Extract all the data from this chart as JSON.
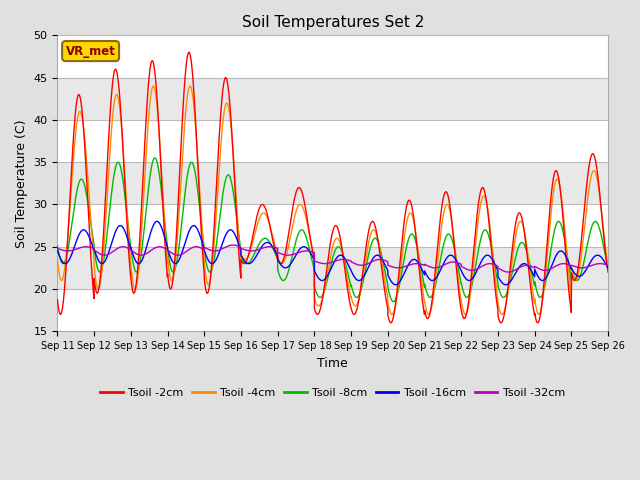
{
  "title": "Soil Temperatures Set 2",
  "xlabel": "Time",
  "ylabel": "Soil Temperature (C)",
  "ylim": [
    15,
    50
  ],
  "yticks": [
    15,
    20,
    25,
    30,
    35,
    40,
    45,
    50
  ],
  "x_tick_labels": [
    "Sep 11",
    "Sep 12",
    "Sep 13",
    "Sep 14",
    "Sep 15",
    "Sep 16",
    "Sep 17",
    "Sep 18",
    "Sep 19",
    "Sep 20",
    "Sep 21",
    "Sep 22",
    "Sep 23",
    "Sep 24",
    "Sep 25",
    "Sep 26"
  ],
  "annotation_text": "VR_met",
  "annotation_color": "#8B0000",
  "annotation_bg": "#FFD700",
  "annotation_border": "#8B6914",
  "colors": {
    "Tsoil -2cm": "#FF0000",
    "Tsoil -4cm": "#FF8C00",
    "Tsoil -8cm": "#00BB00",
    "Tsoil -16cm": "#0000FF",
    "Tsoil -32cm": "#BB00BB"
  },
  "legend_labels": [
    "Tsoil -2cm",
    "Tsoil -4cm",
    "Tsoil -8cm",
    "Tsoil -16cm",
    "Tsoil -32cm"
  ],
  "background_color": "#E0E0E0",
  "plot_bg_color": "#FFFFFF",
  "grid_color": "#CCCCCC",
  "band_colors": [
    "#FFFFFF",
    "#E8E8E8"
  ]
}
